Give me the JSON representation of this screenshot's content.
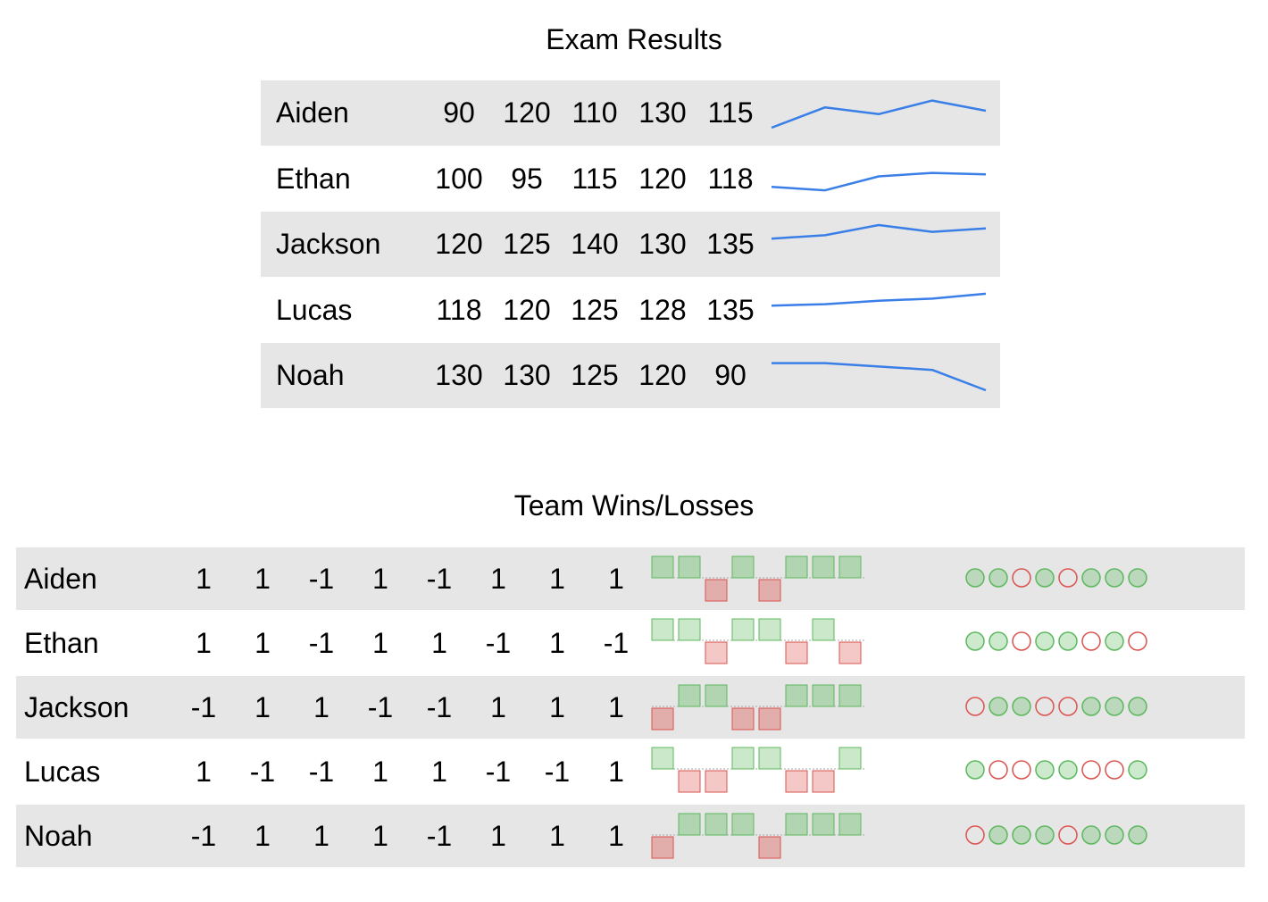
{
  "chart_data": [
    {
      "type": "table",
      "title": "Exam Results",
      "rows": [
        {
          "name": "Aiden",
          "values": [
            90,
            120,
            110,
            130,
            115
          ]
        },
        {
          "name": "Ethan",
          "values": [
            100,
            95,
            115,
            120,
            118
          ]
        },
        {
          "name": "Jackson",
          "values": [
            120,
            125,
            140,
            130,
            135
          ]
        },
        {
          "name": "Lucas",
          "values": [
            118,
            120,
            125,
            128,
            135
          ]
        },
        {
          "name": "Noah",
          "values": [
            130,
            130,
            125,
            120,
            90
          ]
        }
      ],
      "sparkline": {
        "type": "line",
        "color": "#3a7fe8"
      }
    },
    {
      "type": "table",
      "title": "Team Wins/Losses",
      "rows": [
        {
          "name": "Aiden",
          "values": [
            1,
            1,
            -1,
            1,
            -1,
            1,
            1,
            1
          ]
        },
        {
          "name": "Ethan",
          "values": [
            1,
            1,
            -1,
            1,
            1,
            -1,
            1,
            -1
          ]
        },
        {
          "name": "Jackson",
          "values": [
            -1,
            1,
            1,
            -1,
            -1,
            1,
            1,
            1
          ]
        },
        {
          "name": "Lucas",
          "values": [
            1,
            -1,
            -1,
            1,
            1,
            -1,
            -1,
            1
          ]
        },
        {
          "name": "Noah",
          "values": [
            -1,
            1,
            1,
            1,
            -1,
            1,
            1,
            1
          ]
        }
      ],
      "sparkline": {
        "type": "win-loss",
        "win_color": "#5cb85c",
        "loss_color": "#d9534f"
      }
    }
  ]
}
